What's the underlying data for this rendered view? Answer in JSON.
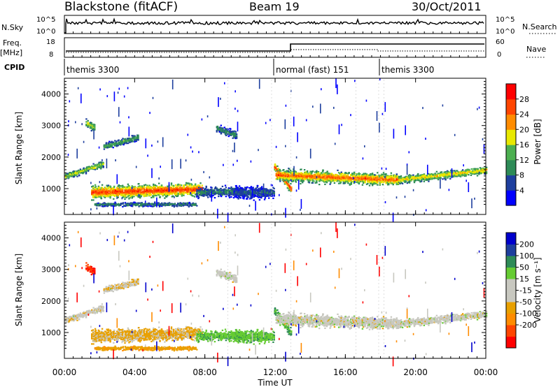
{
  "header": {
    "site": "Blackstone (fitACF)",
    "beam": "Beam 19",
    "date": "30/Oct/2011"
  },
  "side_labels": {
    "nsky": "N.Sky",
    "nsearch": "N.Search",
    "freq": "Freq.",
    "freq_unit": "[MHz]",
    "nave": "Nave",
    "cpid": "CPID"
  },
  "noise_panel": {
    "tick_top": "10^5",
    "tick_bottom": "10^0"
  },
  "freq_panel": {
    "left_ticks": [
      "18",
      "8"
    ],
    "right_ticks": [
      "60",
      "0"
    ]
  },
  "cpid_segments": [
    {
      "label": "themis 3300",
      "start_hour": 0
    },
    {
      "label": "normal (fast) 151",
      "start_hour": 12
    },
    {
      "label": "themis 3300",
      "start_hour": 18
    }
  ],
  "chart_data": [
    {
      "type": "heatmap",
      "title": "",
      "xlabel": "Time UT",
      "ylabel": "Slant Range [km]",
      "x_ticks": [
        "00:00",
        "04:00",
        "08:00",
        "12:00",
        "16:00",
        "20:00",
        "00:00"
      ],
      "x_range_hours": [
        0,
        24
      ],
      "y_ticks": [
        1000,
        2000,
        3000,
        4000
      ],
      "ylim": [
        180,
        4500
      ],
      "colorbar": {
        "label": "Power [dB]",
        "ticks": [
          "4",
          "8",
          "12",
          "16",
          "20",
          "24",
          "28"
        ],
        "range": [
          0,
          30
        ],
        "colors": [
          "#0000ff",
          "#1e3f9e",
          "#2e8b57",
          "#4caf50",
          "#e8e800",
          "#ff8c00",
          "#ff4500",
          "#ff0000"
        ]
      }
    },
    {
      "type": "heatmap",
      "title": "",
      "xlabel": "Time UT",
      "ylabel": "Slant Range [km]",
      "x_ticks": [
        "00:00",
        "04:00",
        "08:00",
        "12:00",
        "16:00",
        "20:00",
        "00:00"
      ],
      "x_range_hours": [
        0,
        24
      ],
      "y_ticks": [
        1000,
        2000,
        3000,
        4000
      ],
      "ylim": [
        180,
        4500
      ],
      "colorbar": {
        "label": "Velocity [m s⁻¹]",
        "ticks": [
          "200",
          "100",
          "50",
          "15",
          "-15",
          "-50",
          "-100",
          "-200"
        ],
        "range": [
          -250,
          250
        ],
        "colors": [
          "#ff0000",
          "#ff4500",
          "#ff8c00",
          "#e8a000",
          "#c8c8c0",
          "#c8c8c0",
          "#66cc33",
          "#2e8b57",
          "#1e3f9e",
          "#0000cc"
        ]
      }
    }
  ],
  "scatter_bands": [
    {
      "panel": "both",
      "t0": 0.0,
      "t1": 2.2,
      "r_start": 1400,
      "r_end": 1800,
      "width": 160,
      "power": 14,
      "vel": -5
    },
    {
      "panel": "both",
      "t0": 2.2,
      "t1": 4.2,
      "r_start": 2350,
      "r_end": 2650,
      "width": 160,
      "power": 10,
      "vel": -10
    },
    {
      "panel": "both",
      "t0": 1.5,
      "t1": 7.8,
      "r_start": 900,
      "r_end": 1000,
      "width": 330,
      "power": 22,
      "vel": -20
    },
    {
      "panel": "both",
      "t0": 1.7,
      "t1": 7.5,
      "r_start": 520,
      "r_end": 520,
      "width": 100,
      "power": 8,
      "vel": -40
    },
    {
      "panel": "both",
      "t0": 7.5,
      "t1": 10.2,
      "r_start": 900,
      "r_end": 950,
      "width": 250,
      "power": 8,
      "vel": 40
    },
    {
      "panel": "both",
      "t0": 11.9,
      "t1": 12.9,
      "r_start": 1750,
      "r_end": 1000,
      "width": 200,
      "power": 22,
      "vel": 50
    },
    {
      "panel": "both",
      "t0": 12.0,
      "t1": 19.0,
      "r_start": 1450,
      "r_end": 1300,
      "width": 300,
      "power": 20,
      "vel": 0
    },
    {
      "panel": "both",
      "t0": 19.0,
      "t1": 24.0,
      "r_start": 1300,
      "r_end": 1600,
      "width": 200,
      "power": 16,
      "vel": 0
    },
    {
      "panel": "both",
      "t0": 1.2,
      "t1": 1.7,
      "r_start": 3100,
      "r_end": 2950,
      "width": 220,
      "power": 14,
      "vel": -200
    },
    {
      "panel": "both",
      "t0": 8.6,
      "t1": 9.8,
      "r_start": 2950,
      "r_end": 2700,
      "width": 200,
      "power": 8,
      "vel": 0
    },
    {
      "panel": "both",
      "t0": 9.6,
      "t1": 11.9,
      "r_start": 900,
      "r_end": 900,
      "width": 300,
      "power": 6,
      "vel": 40
    }
  ]
}
